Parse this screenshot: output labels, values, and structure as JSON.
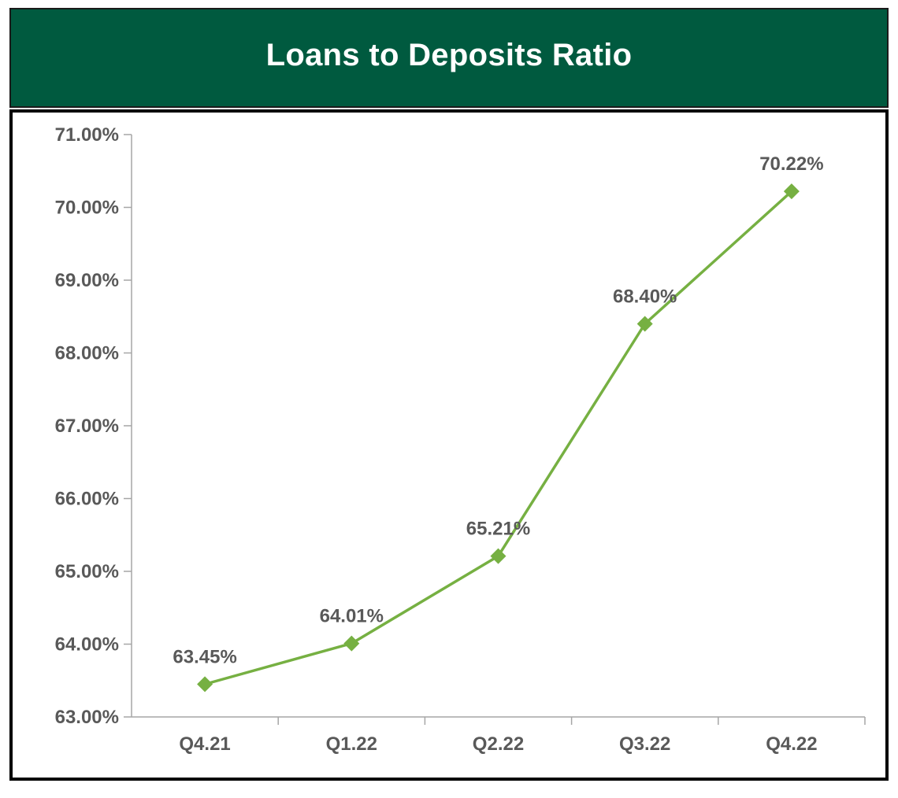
{
  "colors": {
    "title_bg": "#005a3f",
    "title_text": "#ffffff",
    "series_line": "#76b042",
    "label_text": "#595959",
    "axis": "#a6a6a6",
    "frame_border": "#000000"
  },
  "chart_data": {
    "type": "line",
    "title": "Loans to Deposits Ratio",
    "categories": [
      "Q4.21",
      "Q1.22",
      "Q2.22",
      "Q3.22",
      "Q4.22"
    ],
    "series": [
      {
        "values": [
          63.45,
          64.01,
          65.21,
          68.4,
          70.22
        ],
        "data_labels": [
          "63.45%",
          "64.01%",
          "65.21%",
          "68.40%",
          "70.22%"
        ],
        "marker": "diamond"
      }
    ],
    "ylim": [
      63,
      71
    ],
    "y_ticks": [
      63,
      64,
      65,
      66,
      67,
      68,
      69,
      70,
      71
    ],
    "y_tick_labels": [
      "63.00%",
      "64.00%",
      "65.00%",
      "66.00%",
      "67.00%",
      "68.00%",
      "69.00%",
      "70.00%",
      "71.00%"
    ],
    "xlabel": "",
    "ylabel": "",
    "grid": false,
    "legend": "none"
  }
}
